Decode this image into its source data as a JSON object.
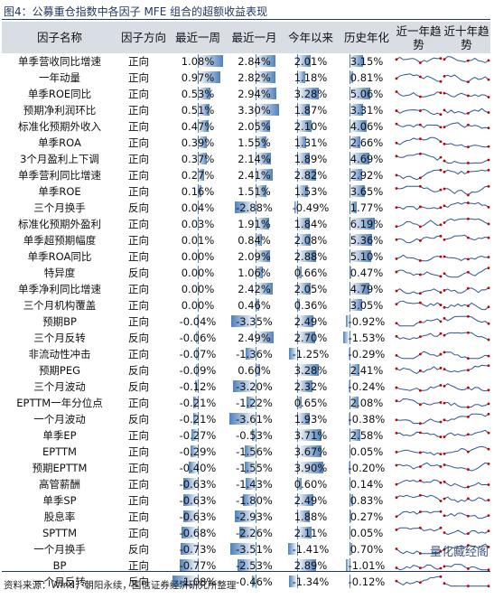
{
  "title": "图4：公募重仓指数中各因子 MFE 组合的超额收益表现",
  "headers": {
    "name": "因子名称",
    "direction": "因子方向",
    "week": "最近一周",
    "month": "最近一月",
    "ytd": "今年以来",
    "hist": "历史年化",
    "trend1": "近一年趋势",
    "trend10": "近十年趋势"
  },
  "rows": [
    {
      "name": "单季营收同比增速",
      "direction": "正向",
      "week": "1.08%",
      "month": "2.84%",
      "ytd": "2.01%",
      "hist": "3.15%"
    },
    {
      "name": "一年动量",
      "direction": "正向",
      "week": "0.97%",
      "month": "2.82%",
      "ytd": "1.18%",
      "hist": "0.81%"
    },
    {
      "name": "单季ROE同比",
      "direction": "正向",
      "week": "0.53%",
      "month": "2.94%",
      "ytd": "3.28%",
      "hist": "5.06%"
    },
    {
      "name": "预期净利润环比",
      "direction": "正向",
      "week": "0.51%",
      "month": "3.30%",
      "ytd": "1.87%",
      "hist": "3.31%"
    },
    {
      "name": "标准化预期外收入",
      "direction": "正向",
      "week": "0.47%",
      "month": "2.05%",
      "ytd": "2.10%",
      "hist": "4.06%"
    },
    {
      "name": "单季ROA",
      "direction": "正向",
      "week": "0.39%",
      "month": "1.55%",
      "ytd": "1.31%",
      "hist": "2.66%"
    },
    {
      "name": "3个月盈利上下调",
      "direction": "正向",
      "week": "0.37%",
      "month": "2.14%",
      "ytd": "1.89%",
      "hist": "4.69%"
    },
    {
      "name": "单季营利同比增速",
      "direction": "正向",
      "week": "0.27%",
      "month": "2.41%",
      "ytd": "2.82%",
      "hist": "2.92%"
    },
    {
      "name": "单季ROE",
      "direction": "正向",
      "week": "0.16%",
      "month": "1.51%",
      "ytd": "1.53%",
      "hist": "3.65%"
    },
    {
      "name": "三个月换手",
      "direction": "反向",
      "week": "0.04%",
      "month": "-2.88%",
      "ytd": "-0.49%",
      "hist": "1.77%"
    },
    {
      "name": "标准化预期外盈利",
      "direction": "正向",
      "week": "0.03%",
      "month": "1.91%",
      "ytd": "1.84%",
      "hist": "6.19%"
    },
    {
      "name": "单季超预期幅度",
      "direction": "正向",
      "week": "0.01%",
      "month": "0.84%",
      "ytd": "2.08%",
      "hist": "5.36%"
    },
    {
      "name": "单季ROA同比",
      "direction": "正向",
      "week": "0.00%",
      "month": "2.09%",
      "ytd": "2.88%",
      "hist": "5.10%"
    },
    {
      "name": "特异度",
      "direction": "反向",
      "week": "0.00%",
      "month": "1.06%",
      "ytd": "0.66%",
      "hist": "0.47%"
    },
    {
      "name": "单季净利同比增速",
      "direction": "正向",
      "week": "0.00%",
      "month": "2.42%",
      "ytd": "2.05%",
      "hist": "4.79%"
    },
    {
      "name": "三个月机构覆盖",
      "direction": "正向",
      "week": "0.00%",
      "month": "0.46%",
      "ytd": "0.36%",
      "hist": "3.05%"
    },
    {
      "name": "预期BP",
      "direction": "正向",
      "week": "-0.04%",
      "month": "-3.35%",
      "ytd": "2.49%",
      "hist": "-0.92%"
    },
    {
      "name": "三个月反转",
      "direction": "反向",
      "week": "-0.06%",
      "month": "2.49%",
      "ytd": "2.70%",
      "hist": "-1.53%"
    },
    {
      "name": "非流动性冲击",
      "direction": "正向",
      "week": "-0.07%",
      "month": "-1.36%",
      "ytd": "-1.25%",
      "hist": "-0.29%"
    },
    {
      "name": "预期PEG",
      "direction": "反向",
      "week": "-0.09%",
      "month": "0.60%",
      "ytd": "3.28%",
      "hist": "2.41%"
    },
    {
      "name": "三个月波动",
      "direction": "反向",
      "week": "-0.12%",
      "month": "-3.20%",
      "ytd": "2.32%",
      "hist": "-0.24%"
    },
    {
      "name": "EPTTM一年分位点",
      "direction": "正向",
      "week": "-0.21%",
      "month": "-1.22%",
      "ytd": "0.65%",
      "hist": "2.08%"
    },
    {
      "name": "一个月波动",
      "direction": "反向",
      "week": "-0.21%",
      "month": "-3.61%",
      "ytd": "1.93%",
      "hist": "-0.38%"
    },
    {
      "name": "单季EP",
      "direction": "正向",
      "week": "-0.27%",
      "month": "-0.53%",
      "ytd": "3.71%",
      "hist": "2.58%"
    },
    {
      "name": "EPTTM",
      "direction": "正向",
      "week": "-0.29%",
      "month": "-1.56%",
      "ytd": "3.67%",
      "hist": "0.05%"
    },
    {
      "name": "预期EPTTM",
      "direction": "正向",
      "week": "-0.40%",
      "month": "-1.55%",
      "ytd": "3.90%",
      "hist": "-0.20%"
    },
    {
      "name": "高管薪酬",
      "direction": "正向",
      "week": "-0.63%",
      "month": "-1.43%",
      "ytd": "0.60%",
      "hist": "0.14%"
    },
    {
      "name": "单季SP",
      "direction": "正向",
      "week": "-0.63%",
      "month": "-1.80%",
      "ytd": "2.49%",
      "hist": "0.83%"
    },
    {
      "name": "股息率",
      "direction": "正向",
      "week": "-0.63%",
      "month": "-2.93%",
      "ytd": "1.88%",
      "hist": "0.27%"
    },
    {
      "name": "SPTTM",
      "direction": "正向",
      "week": "-0.68%",
      "month": "-2.26%",
      "ytd": "2.11%",
      "hist": "0.05%"
    },
    {
      "name": "一个月换手",
      "direction": "反向",
      "week": "-0.73%",
      "month": "-3.51%",
      "ytd": "-1.41%",
      "hist": "0.70%"
    },
    {
      "name": "BP",
      "direction": "正向",
      "week": "-0.77%",
      "month": "-2.53%",
      "ytd": "2.89%",
      "hist": "-1.01%"
    },
    {
      "name": "一个月反转",
      "direction": "反向",
      "week": "-1.08%",
      "month": "-0.46%",
      "ytd": "-1.34%",
      "hist": "-0.12%"
    }
  ],
  "source": "资料来源：Wind，朝阳永续，国信证券经济研究所整理",
  "watermark": "量化藏经阁",
  "colors": {
    "bar": "#4f81bd",
    "header_bg": "#d9dde4",
    "spark_line": "#2f5597",
    "spark_marker": "#c00000",
    "rule": "#1f3864"
  }
}
